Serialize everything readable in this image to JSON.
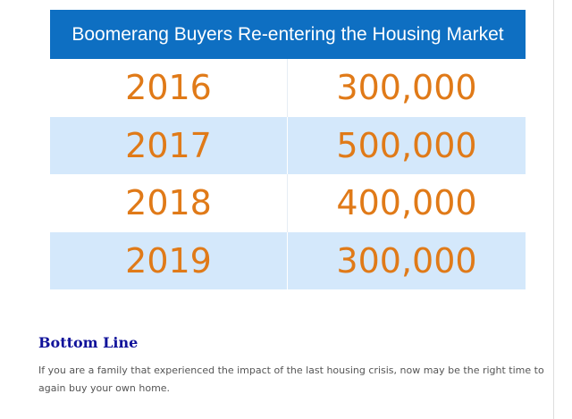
{
  "chart_data": {
    "type": "table",
    "title": "Boomerang Buyers Re-entering the Housing Market",
    "rows": [
      {
        "year": "2016",
        "value": "300,000"
      },
      {
        "year": "2017",
        "value": "500,000"
      },
      {
        "year": "2018",
        "value": "400,000"
      },
      {
        "year": "2019",
        "value": "300,000"
      }
    ]
  },
  "article": {
    "heading": "Bottom Line",
    "paragraph": "If you are a family that experienced the impact of the last housing crisis, now may be the right time to again buy your own home."
  },
  "colors": {
    "title_bar": "#0e6fc2",
    "band": "#d4e8fb",
    "figure_text": "#e07a18",
    "heading_text": "#10129a",
    "body_text": "#555555"
  }
}
